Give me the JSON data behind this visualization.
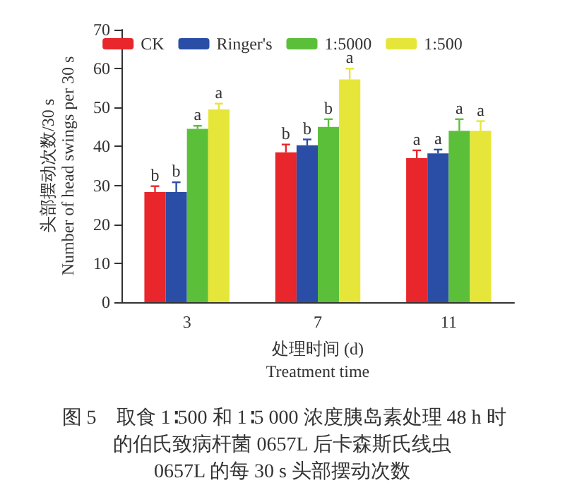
{
  "chart_data": {
    "type": "bar",
    "xlabel": "处理时间 (d)\nTreatment time",
    "ylabel": "头部摆动次数/30 s\nNumber of head swings per 30 s",
    "categories": [
      "3",
      "7",
      "11"
    ],
    "series": [
      {
        "name": "CK",
        "color": "#e8262b",
        "values": [
          28.3,
          38.5,
          37
        ],
        "errors": [
          1.5,
          2,
          2
        ],
        "value_labels": [
          "b",
          "b",
          "a"
        ]
      },
      {
        "name": "Ringer's",
        "color": "#2a4ea6",
        "values": [
          28.3,
          40.3,
          38.2
        ],
        "errors": [
          2.5,
          1.5,
          1
        ],
        "value_labels": [
          "b",
          "b",
          "a"
        ]
      },
      {
        "name": "1:5000",
        "color": "#5cbf3a",
        "values": [
          44.5,
          45,
          44
        ],
        "errors": [
          0.8,
          2,
          3
        ],
        "value_labels": [
          "a",
          "b",
          "a"
        ]
      },
      {
        "name": "1:500",
        "color": "#e6e63a",
        "values": [
          49.5,
          57.2,
          44
        ],
        "errors": [
          1.5,
          2.8,
          2.5
        ],
        "value_labels": [
          "a",
          "a",
          "a"
        ]
      }
    ],
    "ylim": [
      0,
      70
    ],
    "yticks": [
      0,
      10,
      20,
      30,
      40,
      50,
      60,
      70
    ],
    "grid": false,
    "legend": "top",
    "annotations": [
      "图 5　取食 1∶500 和 1∶5 000 浓度胰岛素处理 48 h 时",
      "的伯氏致病杆菌 0657L 后卡森斯氏线虫",
      "0657L 的每 30 s 头部摆动次数"
    ]
  }
}
